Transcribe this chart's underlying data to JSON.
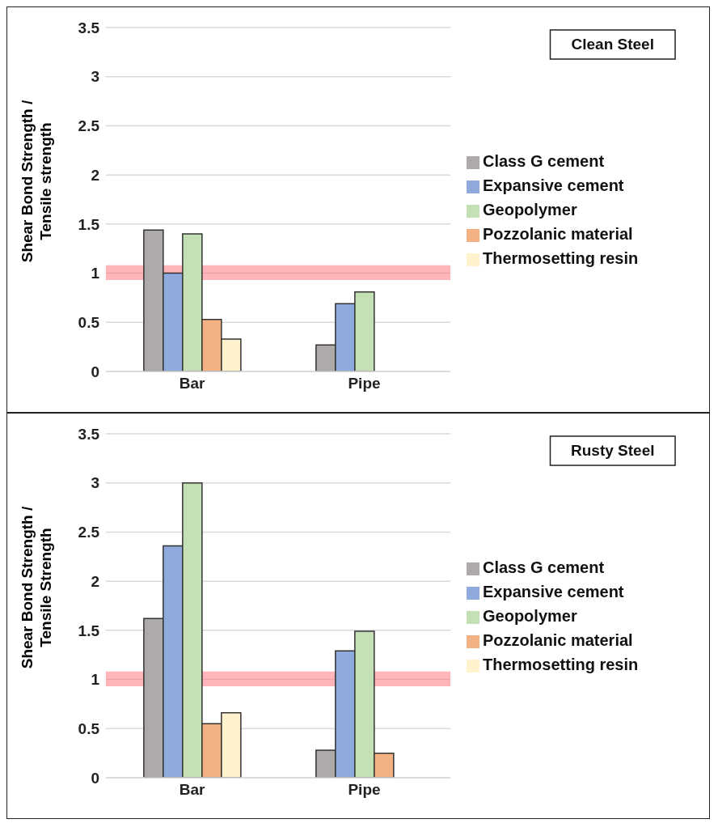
{
  "chart_data": [
    {
      "type": "bar",
      "annotations": [
        "Clean Steel"
      ],
      "ylabel": "Shear Bond Strength / Tensile strength",
      "categories": [
        "Bar",
        "Pipe"
      ],
      "series": [
        {
          "name": "Class G cement",
          "color": "#aeaaaa",
          "values": [
            1.44,
            0.27
          ]
        },
        {
          "name": "Expansive cement",
          "color": "#8faadc",
          "values": [
            1.0,
            0.69
          ]
        },
        {
          "name": "Geopolymer",
          "color": "#c5e0b4",
          "values": [
            1.4,
            0.81
          ]
        },
        {
          "name": "Pozzolanic material",
          "color": "#f4b183",
          "values": [
            0.53,
            null
          ]
        },
        {
          "name": "Thermosetting resin",
          "color": "#fff2cc",
          "values": [
            0.33,
            null
          ]
        }
      ],
      "ylim": [
        0,
        3.5
      ],
      "yticks": [
        0,
        0.5,
        1,
        1.5,
        2,
        2.5,
        3,
        3.5
      ],
      "grid": "y",
      "legend": "right",
      "bands": [
        {
          "axis": "y",
          "from": 0.93,
          "to": 1.08,
          "color": "#ff6b74"
        }
      ]
    },
    {
      "type": "bar",
      "annotations": [
        "Rusty Steel"
      ],
      "ylabel": "Shear Bond Strength / Tensile Strength",
      "categories": [
        "Bar",
        "Pipe"
      ],
      "series": [
        {
          "name": "Class G cement",
          "color": "#aeaaaa",
          "values": [
            1.62,
            0.28
          ]
        },
        {
          "name": "Expansive cement",
          "color": "#8faadc",
          "values": [
            2.36,
            1.29
          ]
        },
        {
          "name": "Geopolymer",
          "color": "#c5e0b4",
          "values": [
            3.0,
            1.49
          ]
        },
        {
          "name": "Pozzolanic material",
          "color": "#f4b183",
          "values": [
            0.55,
            0.25
          ]
        },
        {
          "name": "Thermosetting resin",
          "color": "#fff2cc",
          "values": [
            0.66,
            null
          ]
        }
      ],
      "ylim": [
        0,
        3.5
      ],
      "yticks": [
        0,
        0.5,
        1,
        1.5,
        2,
        2.5,
        3,
        3.5
      ],
      "grid": "y",
      "legend": "right",
      "bands": [
        {
          "axis": "y",
          "from": 0.93,
          "to": 1.08,
          "color": "#ff6b74"
        }
      ]
    }
  ]
}
